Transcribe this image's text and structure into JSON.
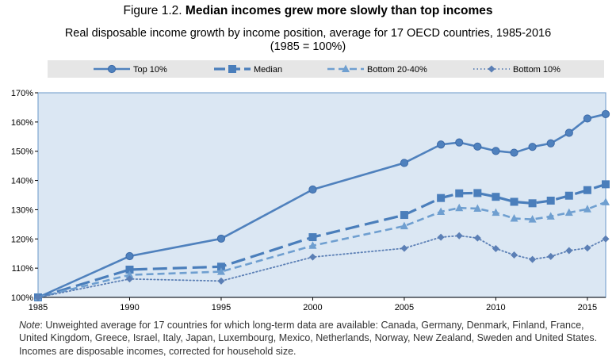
{
  "figure": {
    "label": "Figure 1.2.",
    "title": "Median incomes grew more slowly than top incomes",
    "subtitle_line1": "Real disposable income growth by income position, average for 17 OECD countries, 1985-2016",
    "subtitle_line2": "(1985 = 100%)"
  },
  "note": {
    "label": "Note",
    "text": ": Unweighted average for 17 countries for which long-term data are available: Canada, Germany, Denmark, Finland, France, United Kingdom, Greece, Israel, Italy, Japan, Luxembourg, Mexico, Netherlands, Norway, New Zealand, Sweden and United States. Incomes are disposable incomes, corrected for household size."
  },
  "colors": {
    "top10": "#4f81bd",
    "median": "#4a7ebb",
    "bottom2040": "#6f9fd0",
    "bottom10": "#5b7fb5",
    "plot_bg": "#dbe7f3",
    "plot_border": "#7fa6d1",
    "legend_bg": "#e6e6e6"
  },
  "chart_data": {
    "type": "line",
    "title": "Real disposable income growth by income position, average for 17 OECD countries, 1985-2016",
    "xlabel": "",
    "ylabel": "",
    "xlim": [
      1985,
      2016
    ],
    "ylim": [
      100,
      170
    ],
    "x_ticks": [
      1985,
      1990,
      1995,
      2000,
      2005,
      2010,
      2015
    ],
    "y_ticks": [
      100,
      110,
      120,
      130,
      140,
      150,
      160,
      170
    ],
    "y_tick_labels": [
      "100%",
      "110%",
      "120%",
      "130%",
      "140%",
      "150%",
      "160%",
      "170%"
    ],
    "series": [
      {
        "name": "Top 10%",
        "style": "solid",
        "marker": "circle",
        "x": [
          1985,
          1990,
          1995,
          2000,
          2005,
          2007,
          2008,
          2009,
          2010,
          2011,
          2012,
          2013,
          2014,
          2015,
          2016
        ],
        "values": [
          100,
          114.1,
          120.1,
          136.9,
          146.0,
          152.3,
          153.0,
          151.6,
          150.1,
          149.5,
          151.5,
          152.7,
          156.3,
          161.2,
          162.7
        ]
      },
      {
        "name": "Median",
        "style": "longdash",
        "marker": "square",
        "x": [
          1985,
          1990,
          1995,
          2000,
          2005,
          2007,
          2008,
          2009,
          2010,
          2011,
          2012,
          2013,
          2014,
          2015,
          2016
        ],
        "values": [
          100,
          109.5,
          110.5,
          120.6,
          128.2,
          134.0,
          135.6,
          135.7,
          134.4,
          132.7,
          132.2,
          133.1,
          134.8,
          136.7,
          138.7
        ]
      },
      {
        "name": "Bottom 20-40%",
        "style": "dash",
        "marker": "triangle",
        "x": [
          1985,
          1990,
          1995,
          2000,
          2005,
          2007,
          2008,
          2009,
          2010,
          2011,
          2012,
          2013,
          2014,
          2015,
          2016
        ],
        "values": [
          100,
          107.7,
          108.8,
          117.7,
          124.4,
          129.3,
          130.6,
          130.4,
          129.0,
          127.0,
          126.7,
          127.7,
          129.0,
          130.2,
          132.6
        ]
      },
      {
        "name": "Bottom 10%",
        "style": "dotted",
        "marker": "diamond",
        "x": [
          1985,
          1990,
          1995,
          2000,
          2005,
          2007,
          2008,
          2009,
          2010,
          2011,
          2012,
          2013,
          2014,
          2015,
          2016
        ],
        "values": [
          100,
          106.3,
          105.6,
          113.8,
          116.8,
          120.6,
          121.1,
          120.3,
          116.7,
          114.5,
          113.0,
          114.0,
          116.0,
          116.9,
          120.0
        ]
      }
    ]
  }
}
